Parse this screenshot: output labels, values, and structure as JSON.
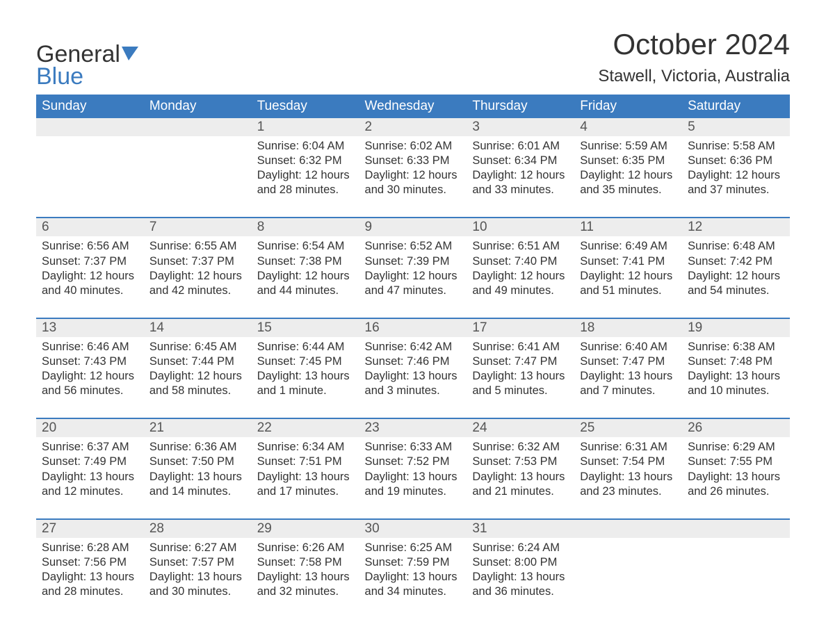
{
  "logo": {
    "part1": "General",
    "part2": "Blue"
  },
  "title": "October 2024",
  "location": "Stawell, Victoria, Australia",
  "colors": {
    "header_bg": "#3b7bbf",
    "header_text": "#ffffff",
    "daynum_bg": "#ededed",
    "daynum_text": "#555555",
    "body_text": "#333333",
    "rule": "#3b7bbf",
    "page_bg": "#ffffff"
  },
  "typography": {
    "title_fontsize_pt": 32,
    "location_fontsize_pt": 18,
    "header_fontsize_pt": 14,
    "daynum_fontsize_pt": 14,
    "body_fontsize_pt": 12,
    "logo_fontsize_pt": 26
  },
  "layout": {
    "columns": 7,
    "rows": 5,
    "first_weekday": "Sunday"
  },
  "weekdays": [
    "Sunday",
    "Monday",
    "Tuesday",
    "Wednesday",
    "Thursday",
    "Friday",
    "Saturday"
  ],
  "weeks": [
    [
      {
        "day": "",
        "sunrise": "",
        "sunset": "",
        "daylight": ""
      },
      {
        "day": "",
        "sunrise": "",
        "sunset": "",
        "daylight": ""
      },
      {
        "day": "1",
        "sunrise": "Sunrise: 6:04 AM",
        "sunset": "Sunset: 6:32 PM",
        "daylight": "Daylight: 12 hours and 28 minutes."
      },
      {
        "day": "2",
        "sunrise": "Sunrise: 6:02 AM",
        "sunset": "Sunset: 6:33 PM",
        "daylight": "Daylight: 12 hours and 30 minutes."
      },
      {
        "day": "3",
        "sunrise": "Sunrise: 6:01 AM",
        "sunset": "Sunset: 6:34 PM",
        "daylight": "Daylight: 12 hours and 33 minutes."
      },
      {
        "day": "4",
        "sunrise": "Sunrise: 5:59 AM",
        "sunset": "Sunset: 6:35 PM",
        "daylight": "Daylight: 12 hours and 35 minutes."
      },
      {
        "day": "5",
        "sunrise": "Sunrise: 5:58 AM",
        "sunset": "Sunset: 6:36 PM",
        "daylight": "Daylight: 12 hours and 37 minutes."
      }
    ],
    [
      {
        "day": "6",
        "sunrise": "Sunrise: 6:56 AM",
        "sunset": "Sunset: 7:37 PM",
        "daylight": "Daylight: 12 hours and 40 minutes."
      },
      {
        "day": "7",
        "sunrise": "Sunrise: 6:55 AM",
        "sunset": "Sunset: 7:37 PM",
        "daylight": "Daylight: 12 hours and 42 minutes."
      },
      {
        "day": "8",
        "sunrise": "Sunrise: 6:54 AM",
        "sunset": "Sunset: 7:38 PM",
        "daylight": "Daylight: 12 hours and 44 minutes."
      },
      {
        "day": "9",
        "sunrise": "Sunrise: 6:52 AM",
        "sunset": "Sunset: 7:39 PM",
        "daylight": "Daylight: 12 hours and 47 minutes."
      },
      {
        "day": "10",
        "sunrise": "Sunrise: 6:51 AM",
        "sunset": "Sunset: 7:40 PM",
        "daylight": "Daylight: 12 hours and 49 minutes."
      },
      {
        "day": "11",
        "sunrise": "Sunrise: 6:49 AM",
        "sunset": "Sunset: 7:41 PM",
        "daylight": "Daylight: 12 hours and 51 minutes."
      },
      {
        "day": "12",
        "sunrise": "Sunrise: 6:48 AM",
        "sunset": "Sunset: 7:42 PM",
        "daylight": "Daylight: 12 hours and 54 minutes."
      }
    ],
    [
      {
        "day": "13",
        "sunrise": "Sunrise: 6:46 AM",
        "sunset": "Sunset: 7:43 PM",
        "daylight": "Daylight: 12 hours and 56 minutes."
      },
      {
        "day": "14",
        "sunrise": "Sunrise: 6:45 AM",
        "sunset": "Sunset: 7:44 PM",
        "daylight": "Daylight: 12 hours and 58 minutes."
      },
      {
        "day": "15",
        "sunrise": "Sunrise: 6:44 AM",
        "sunset": "Sunset: 7:45 PM",
        "daylight": "Daylight: 13 hours and 1 minute."
      },
      {
        "day": "16",
        "sunrise": "Sunrise: 6:42 AM",
        "sunset": "Sunset: 7:46 PM",
        "daylight": "Daylight: 13 hours and 3 minutes."
      },
      {
        "day": "17",
        "sunrise": "Sunrise: 6:41 AM",
        "sunset": "Sunset: 7:47 PM",
        "daylight": "Daylight: 13 hours and 5 minutes."
      },
      {
        "day": "18",
        "sunrise": "Sunrise: 6:40 AM",
        "sunset": "Sunset: 7:47 PM",
        "daylight": "Daylight: 13 hours and 7 minutes."
      },
      {
        "day": "19",
        "sunrise": "Sunrise: 6:38 AM",
        "sunset": "Sunset: 7:48 PM",
        "daylight": "Daylight: 13 hours and 10 minutes."
      }
    ],
    [
      {
        "day": "20",
        "sunrise": "Sunrise: 6:37 AM",
        "sunset": "Sunset: 7:49 PM",
        "daylight": "Daylight: 13 hours and 12 minutes."
      },
      {
        "day": "21",
        "sunrise": "Sunrise: 6:36 AM",
        "sunset": "Sunset: 7:50 PM",
        "daylight": "Daylight: 13 hours and 14 minutes."
      },
      {
        "day": "22",
        "sunrise": "Sunrise: 6:34 AM",
        "sunset": "Sunset: 7:51 PM",
        "daylight": "Daylight: 13 hours and 17 minutes."
      },
      {
        "day": "23",
        "sunrise": "Sunrise: 6:33 AM",
        "sunset": "Sunset: 7:52 PM",
        "daylight": "Daylight: 13 hours and 19 minutes."
      },
      {
        "day": "24",
        "sunrise": "Sunrise: 6:32 AM",
        "sunset": "Sunset: 7:53 PM",
        "daylight": "Daylight: 13 hours and 21 minutes."
      },
      {
        "day": "25",
        "sunrise": "Sunrise: 6:31 AM",
        "sunset": "Sunset: 7:54 PM",
        "daylight": "Daylight: 13 hours and 23 minutes."
      },
      {
        "day": "26",
        "sunrise": "Sunrise: 6:29 AM",
        "sunset": "Sunset: 7:55 PM",
        "daylight": "Daylight: 13 hours and 26 minutes."
      }
    ],
    [
      {
        "day": "27",
        "sunrise": "Sunrise: 6:28 AM",
        "sunset": "Sunset: 7:56 PM",
        "daylight": "Daylight: 13 hours and 28 minutes."
      },
      {
        "day": "28",
        "sunrise": "Sunrise: 6:27 AM",
        "sunset": "Sunset: 7:57 PM",
        "daylight": "Daylight: 13 hours and 30 minutes."
      },
      {
        "day": "29",
        "sunrise": "Sunrise: 6:26 AM",
        "sunset": "Sunset: 7:58 PM",
        "daylight": "Daylight: 13 hours and 32 minutes."
      },
      {
        "day": "30",
        "sunrise": "Sunrise: 6:25 AM",
        "sunset": "Sunset: 7:59 PM",
        "daylight": "Daylight: 13 hours and 34 minutes."
      },
      {
        "day": "31",
        "sunrise": "Sunrise: 6:24 AM",
        "sunset": "Sunset: 8:00 PM",
        "daylight": "Daylight: 13 hours and 36 minutes."
      },
      {
        "day": "",
        "sunrise": "",
        "sunset": "",
        "daylight": ""
      },
      {
        "day": "",
        "sunrise": "",
        "sunset": "",
        "daylight": ""
      }
    ]
  ]
}
